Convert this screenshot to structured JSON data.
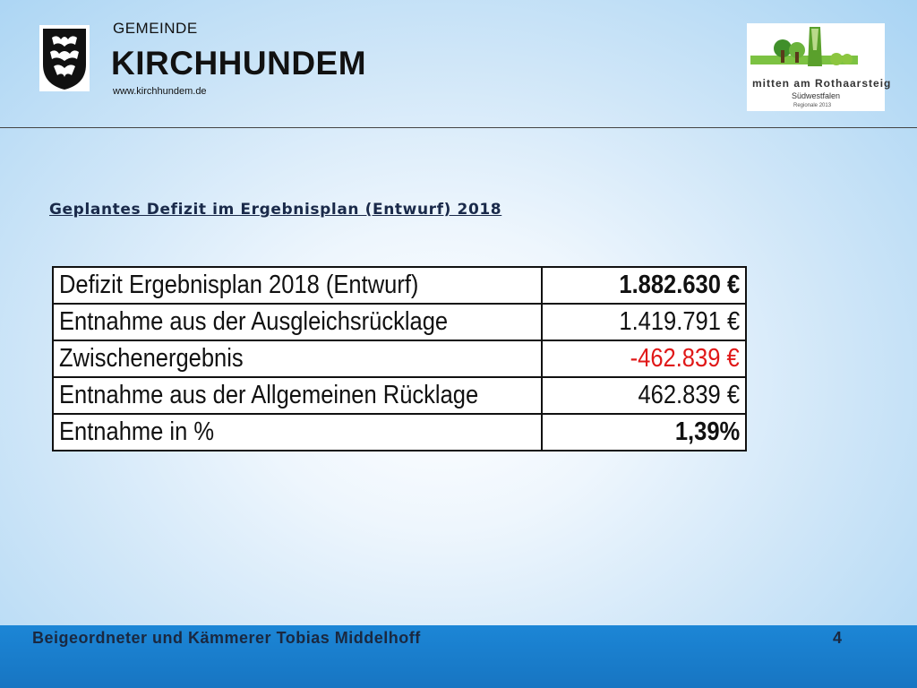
{
  "header": {
    "municipality_label": "GEMEINDE",
    "municipality_name": "KIRCHHUNDEM",
    "website": "www.kirchhundem.de",
    "logo": {
      "line1": "mitten am Rothaarsteig",
      "line2": "Südwestfalen",
      "line3": "Regionale 2013"
    }
  },
  "subtitle": "Geplantes Defizit im Ergebnisplan (Entwurf) 2018",
  "table": {
    "rows": [
      {
        "label": "Defizit Ergebnisplan 2018 (Entwurf)",
        "value": "1.882.630 €"
      },
      {
        "label": "Entnahme aus der Ausgleichsrücklage",
        "value": "1.419.791 €"
      },
      {
        "label": "Zwischenergebnis",
        "value": "-462.839 €"
      },
      {
        "label": "Entnahme aus der Allgemeinen Rücklage",
        "value": "462.839 €"
      },
      {
        "label": "Entnahme in %",
        "value": "1,39%"
      }
    ]
  },
  "footer": {
    "presenter": "Beigeordneter und Kämmerer Tobias Middelhoff",
    "page_number": "4"
  },
  "colors": {
    "negative_value": "#e01818",
    "footer_bar": "#1c86d6"
  }
}
